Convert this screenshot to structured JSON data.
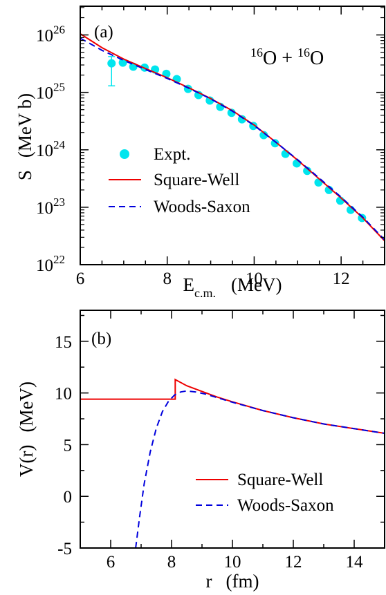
{
  "chart_data": [
    {
      "type": "line",
      "panel_label": "(a)",
      "reaction": {
        "sup1": "16",
        "nuc1": "O + ",
        "sup2": "16",
        "nuc2": "O"
      },
      "xlabel": {
        "main": "E",
        "sub": "c.m.",
        "unit": "(MeV)"
      },
      "ylabel": {
        "main": "S",
        "unit": "(MeV b)"
      },
      "xlim": [
        6,
        13
      ],
      "ylim_log10": [
        22,
        26.5
      ],
      "x_ticks": [
        6,
        8,
        10,
        12
      ],
      "x_tick_labels": [
        "6",
        "8",
        "10",
        "12"
      ],
      "y_ticks_exp": [
        22,
        23,
        24,
        25,
        26
      ],
      "y_tick_base": "10",
      "y_tick_exponents": [
        "22",
        "23",
        "24",
        "25",
        "26"
      ],
      "y_scale": "log",
      "legend": {
        "placement": "bottom-left",
        "entries": [
          "Expt.",
          "Square-Well",
          "Woods-Saxon"
        ]
      },
      "series": [
        {
          "name": "Expt.",
          "style": "points",
          "color": "#00e5ee",
          "x": [
            6.72,
            6.98,
            7.22,
            7.48,
            7.72,
            7.98,
            8.22,
            8.48,
            8.72,
            8.98,
            9.22,
            9.48,
            9.72,
            9.98,
            10.22,
            10.48,
            10.72,
            10.98,
            11.22,
            11.48,
            11.72,
            11.98,
            12.22,
            12.48
          ],
          "y": [
            3.2e+25,
            3.3e+25,
            2.8e+25,
            2.7e+25,
            2.5e+25,
            2.1e+25,
            1.7e+25,
            1.15e+25,
            9e+24,
            7.2e+24,
            5.6e+24,
            4.4e+24,
            3.4e+24,
            2.6e+24,
            1.8e+24,
            1.3e+24,
            8.5e+23,
            5.8e+23,
            4.3e+23,
            2.7e+23,
            2e+23,
            1.3e+23,
            9e+22,
            6.5e+22
          ],
          "err_y_low": [
            1.3e+25,
            null,
            null,
            null,
            null,
            null,
            null,
            null,
            null,
            null,
            null,
            null,
            null,
            null,
            null,
            null,
            null,
            null,
            null,
            null,
            null,
            null,
            null,
            null
          ],
          "err_y_high": [
            4.2e+25,
            3.7e+25,
            null,
            null,
            null,
            null,
            null,
            null,
            null,
            null,
            null,
            null,
            null,
            null,
            null,
            null,
            null,
            null,
            null,
            null,
            null,
            null,
            null,
            null
          ]
        },
        {
          "name": "Square-Well",
          "style": "solid",
          "color": "#ee0000",
          "x": [
            6.0,
            6.5,
            7.0,
            7.5,
            8.0,
            8.5,
            9.0,
            9.5,
            10.0,
            10.5,
            11.0,
            11.5,
            12.0,
            12.5,
            13.0
          ],
          "y": [
            1.05e+26,
            6e+25,
            3.8e+25,
            2.6e+25,
            1.8e+25,
            1.2e+25,
            7.8e+24,
            4.8e+24,
            2.7e+24,
            1.35e+24,
            6.6e+23,
            3.1e+23,
            1.45e+23,
            6.5e+22,
            2.6e+22
          ]
        },
        {
          "name": "Woods-Saxon",
          "style": "dashed",
          "color": "#0000dd",
          "x": [
            6.0,
            6.5,
            7.0,
            7.5,
            8.0,
            8.5,
            9.0,
            9.5,
            10.0,
            10.5,
            11.0,
            11.5,
            12.0,
            12.5,
            13.0
          ],
          "y": [
            8.8e+25,
            5.4e+25,
            3.6e+25,
            2.5e+25,
            1.75e+25,
            1.18e+25,
            7.7e+24,
            4.7e+24,
            2.65e+24,
            1.35e+24,
            6.7e+23,
            3.2e+23,
            1.5e+23,
            6.7e+22,
            2.7e+22
          ]
        }
      ]
    },
    {
      "type": "line",
      "panel_label": "(b)",
      "xlabel": {
        "main": "r",
        "unit": "(fm)"
      },
      "ylabel": {
        "main": "V(r)",
        "unit": "(MeV)"
      },
      "xlim": [
        5,
        15
      ],
      "ylim": [
        -5,
        18
      ],
      "x_ticks": [
        6,
        8,
        10,
        12,
        14
      ],
      "x_tick_labels": [
        "6",
        "8",
        "10",
        "12",
        "14"
      ],
      "y_ticks": [
        -5,
        0,
        5,
        10,
        15
      ],
      "y_tick_labels": [
        "-5",
        "0",
        "5",
        "10",
        "15"
      ],
      "legend": {
        "placement": "bottom-right",
        "entries": [
          "Square-Well",
          "Woods-Saxon"
        ]
      },
      "series": [
        {
          "name": "Square-Well",
          "style": "solid",
          "color": "#ee0000",
          "x": [
            5.0,
            8.12,
            8.12,
            8.5,
            9.0,
            9.5,
            10.0,
            11.0,
            12.0,
            13.0,
            14.0,
            15.0
          ],
          "y": [
            9.4,
            9.4,
            11.3,
            10.7,
            10.15,
            9.6,
            9.15,
            8.3,
            7.6,
            7.0,
            6.55,
            6.1
          ]
        },
        {
          "name": "Woods-Saxon",
          "style": "dashed",
          "color": "#0000dd",
          "x": [
            6.82,
            6.95,
            7.1,
            7.3,
            7.5,
            7.7,
            7.9,
            8.1,
            8.3,
            8.5,
            8.8,
            9.1,
            9.5,
            10.0,
            11.0,
            12.0,
            13.0,
            14.0,
            15.0
          ],
          "y": [
            -5.0,
            -2.0,
            1.2,
            4.3,
            6.6,
            8.2,
            9.2,
            9.8,
            10.1,
            10.2,
            10.1,
            9.9,
            9.55,
            9.1,
            8.3,
            7.6,
            7.0,
            6.55,
            6.1
          ]
        }
      ]
    }
  ]
}
